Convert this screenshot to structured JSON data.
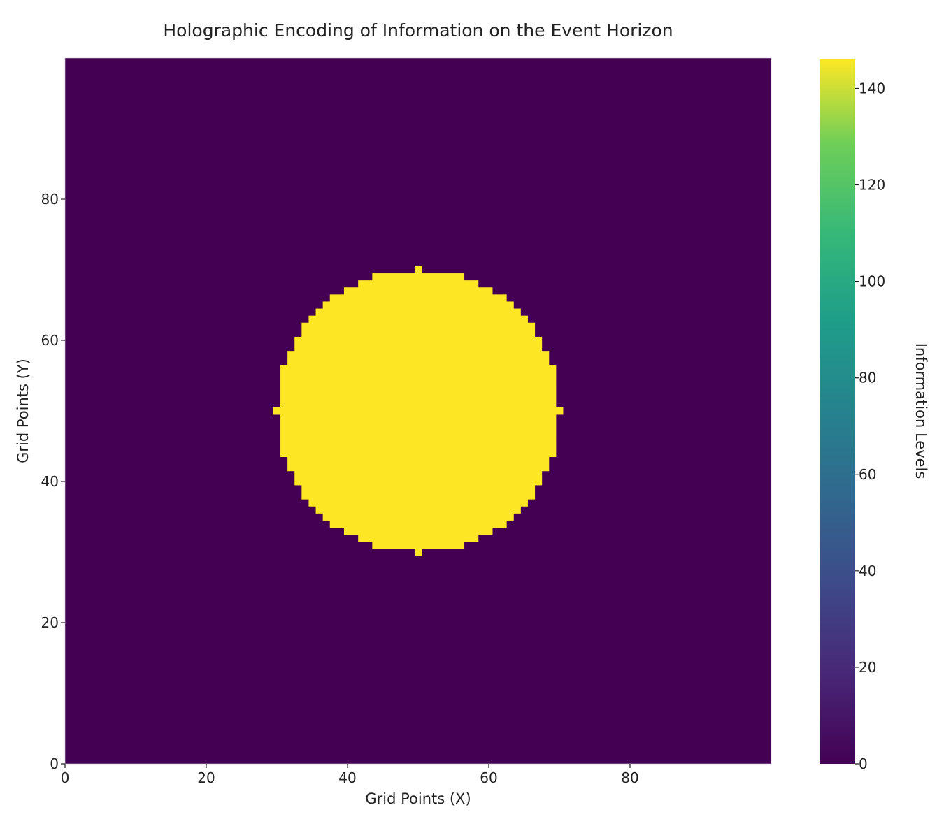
{
  "chart_data": {
    "type": "heatmap",
    "title": "Holographic Encoding of Information on the Event Horizon",
    "xlabel": "Grid Points (X)",
    "ylabel": "Grid Points (Y)",
    "xlim": [
      0,
      99
    ],
    "ylim": [
      0,
      99
    ],
    "xticks": [
      0,
      20,
      40,
      60,
      80
    ],
    "yticks": [
      0,
      20,
      40,
      60,
      80
    ],
    "grid_size": [
      100,
      100
    ],
    "background_value": 0,
    "disk": {
      "center": [
        50,
        50
      ],
      "radius": 20,
      "value": 146
    },
    "colorbar": {
      "label": "Information Levels",
      "colormap": "viridis",
      "range": [
        0,
        146
      ],
      "ticks": [
        0,
        20,
        40,
        60,
        80,
        100,
        120,
        140
      ]
    },
    "colors": {
      "low": "#440154",
      "high": "#fde725"
    },
    "grid": false
  }
}
